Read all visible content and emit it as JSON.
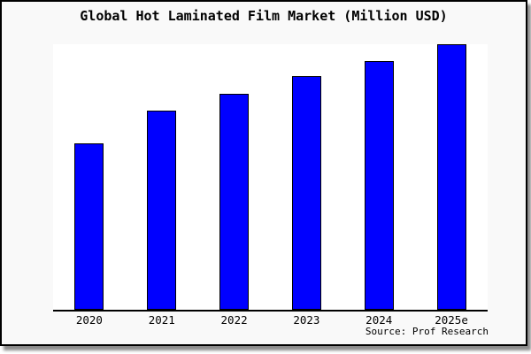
{
  "window": {
    "canvas_background": "#ffffff",
    "frame_background": "#f9f9f9",
    "frame_border_color": "#000000",
    "plot_background": "#ffffff",
    "axis_line_color": "#000000"
  },
  "chart_data": {
    "type": "bar",
    "title": "Global Hot Laminated Film Market (Million USD)",
    "categories": [
      "2020",
      "2021",
      "2022",
      "2023",
      "2024",
      "2025e"
    ],
    "values_pct_of_max": [
      62.7,
      75.1,
      81.3,
      88.0,
      93.6,
      100
    ],
    "bar_color": "#0000ff",
    "bar_border_color": "#000000",
    "xlabel": "",
    "ylabel": "",
    "y_axis_visible": false,
    "gridlines": false,
    "data_labels_visible": false,
    "legend_visible": false,
    "source": "Source: Prof Research"
  }
}
